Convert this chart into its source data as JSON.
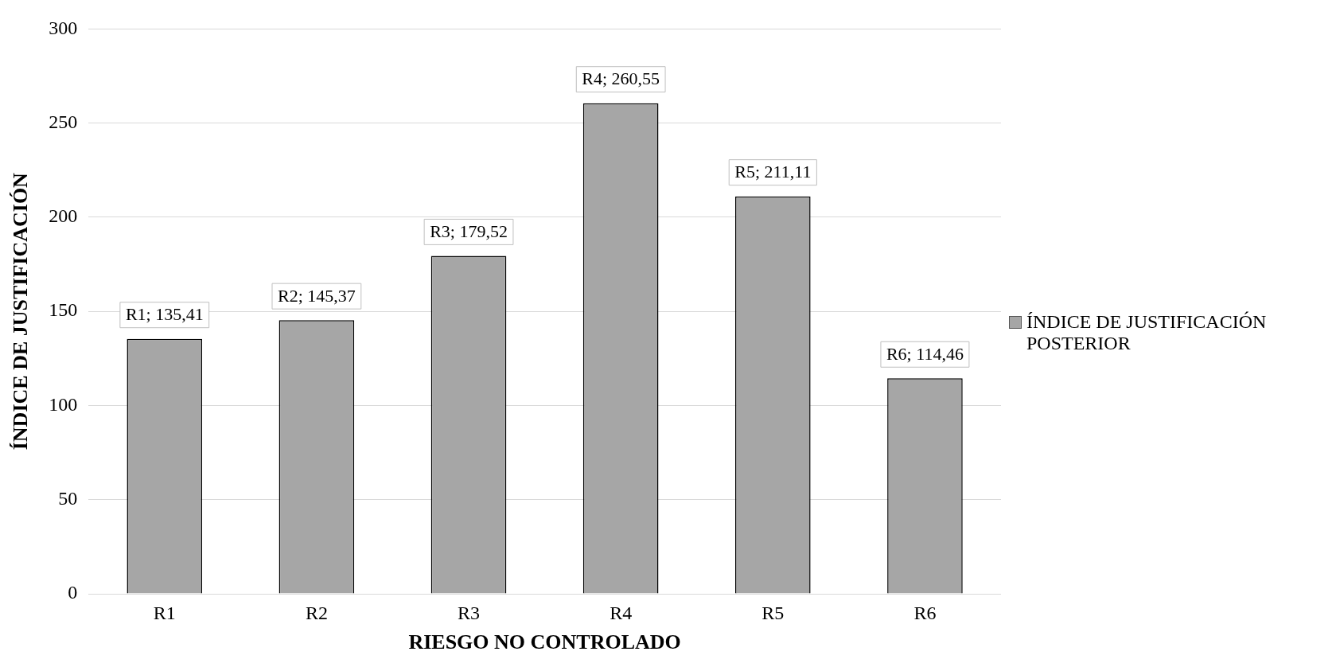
{
  "chart_data": {
    "type": "bar",
    "xlabel": "RIESGO NO CONTROLADO",
    "ylabel": "ÍNDICE DE JUSTIFICACIÓN",
    "categories": [
      "R1",
      "R2",
      "R3",
      "R4",
      "R5",
      "R6"
    ],
    "series": [
      {
        "name": "ÍNDICE DE JUSTIFICACIÓN POSTERIOR",
        "color": "#a6a6a6",
        "values": [
          135.41,
          145.37,
          179.52,
          260.55,
          211.11,
          114.46
        ],
        "value_labels": [
          "R1; 135,41",
          "R2; 145,37",
          "R3; 179,52",
          "R4; 260,55",
          "R5; 211,11",
          "R6; 114,46"
        ]
      }
    ],
    "ylim": [
      0,
      300
    ],
    "yticks": [
      0,
      50,
      100,
      150,
      200,
      250,
      300
    ],
    "grid": "y",
    "legend": "right"
  }
}
